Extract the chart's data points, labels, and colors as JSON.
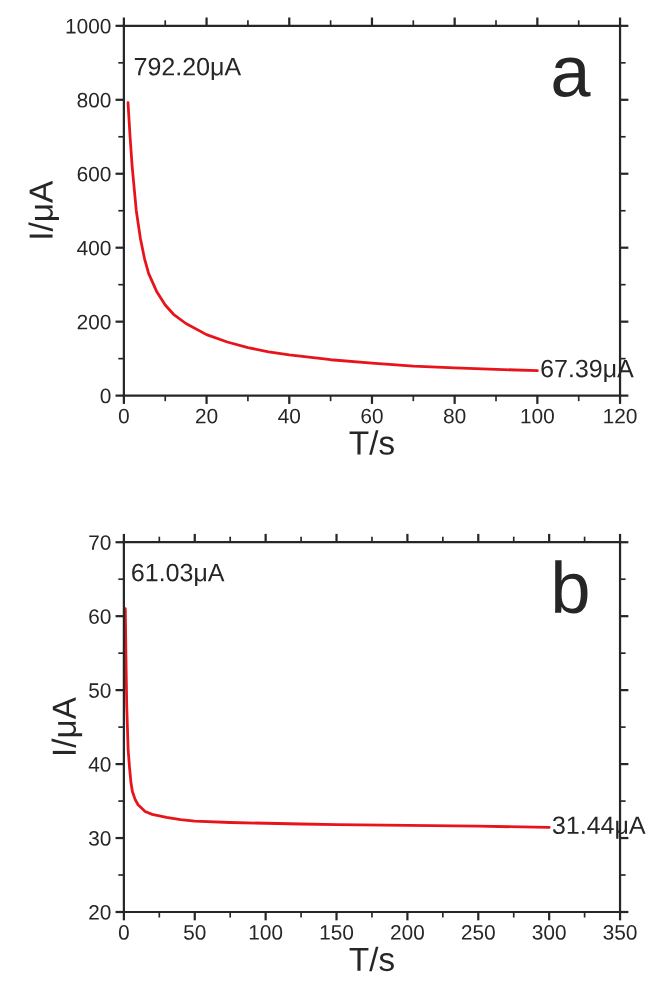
{
  "chart_data": [
    {
      "type": "line",
      "xlabel": "T/s",
      "ylabel": "I/μA",
      "xlim": [
        0,
        120
      ],
      "xticks": [
        0,
        20,
        40,
        60,
        80,
        100,
        120
      ],
      "ylim": [
        0,
        1000
      ],
      "yticks": [
        0,
        200,
        400,
        600,
        800,
        1000
      ],
      "grid": false,
      "legend": false,
      "series": [
        {
          "color": "#e8141c",
          "x": [
            1,
            1.5,
            2,
            3,
            4,
            5,
            6,
            8,
            10,
            12,
            15,
            20,
            25,
            30,
            35,
            40,
            50,
            60,
            70,
            80,
            90,
            100
          ],
          "values": [
            792.2,
            700,
            620,
            500,
            425,
            370,
            330,
            280,
            245,
            220,
            195,
            165,
            145,
            130,
            118,
            110,
            97,
            88,
            80,
            75,
            71,
            67.39
          ]
        }
      ],
      "annotations": [
        {
          "text": "792.20μA",
          "x": 1,
          "y": 792.2
        },
        {
          "text": "67.39μA",
          "x": 100,
          "y": 67.39
        },
        "a"
      ]
    },
    {
      "type": "line",
      "xlabel": "T/s",
      "ylabel": "I/μA",
      "xlim": [
        0,
        350
      ],
      "xticks": [
        0,
        50,
        100,
        150,
        200,
        250,
        300,
        350
      ],
      "ylim": [
        20,
        70
      ],
      "yticks": [
        20,
        30,
        40,
        50,
        60,
        70
      ],
      "grid": false,
      "legend": false,
      "series": [
        {
          "color": "#e8141c",
          "x": [
            1,
            1.5,
            2,
            3,
            4,
            5,
            6,
            8,
            10,
            15,
            20,
            30,
            40,
            50,
            75,
            100,
            125,
            150,
            200,
            250,
            300
          ],
          "values": [
            61.03,
            54,
            48,
            42,
            39.5,
            37.5,
            36.3,
            35.2,
            34.5,
            33.6,
            33.2,
            32.8,
            32.5,
            32.3,
            32.1,
            32.0,
            31.9,
            31.8,
            31.7,
            31.6,
            31.44
          ]
        }
      ],
      "annotations": [
        {
          "text": "61.03μA",
          "x": 1,
          "y": 61.03
        },
        {
          "text": "31.44μA",
          "x": 300,
          "y": 31.44
        },
        "b"
      ]
    }
  ]
}
